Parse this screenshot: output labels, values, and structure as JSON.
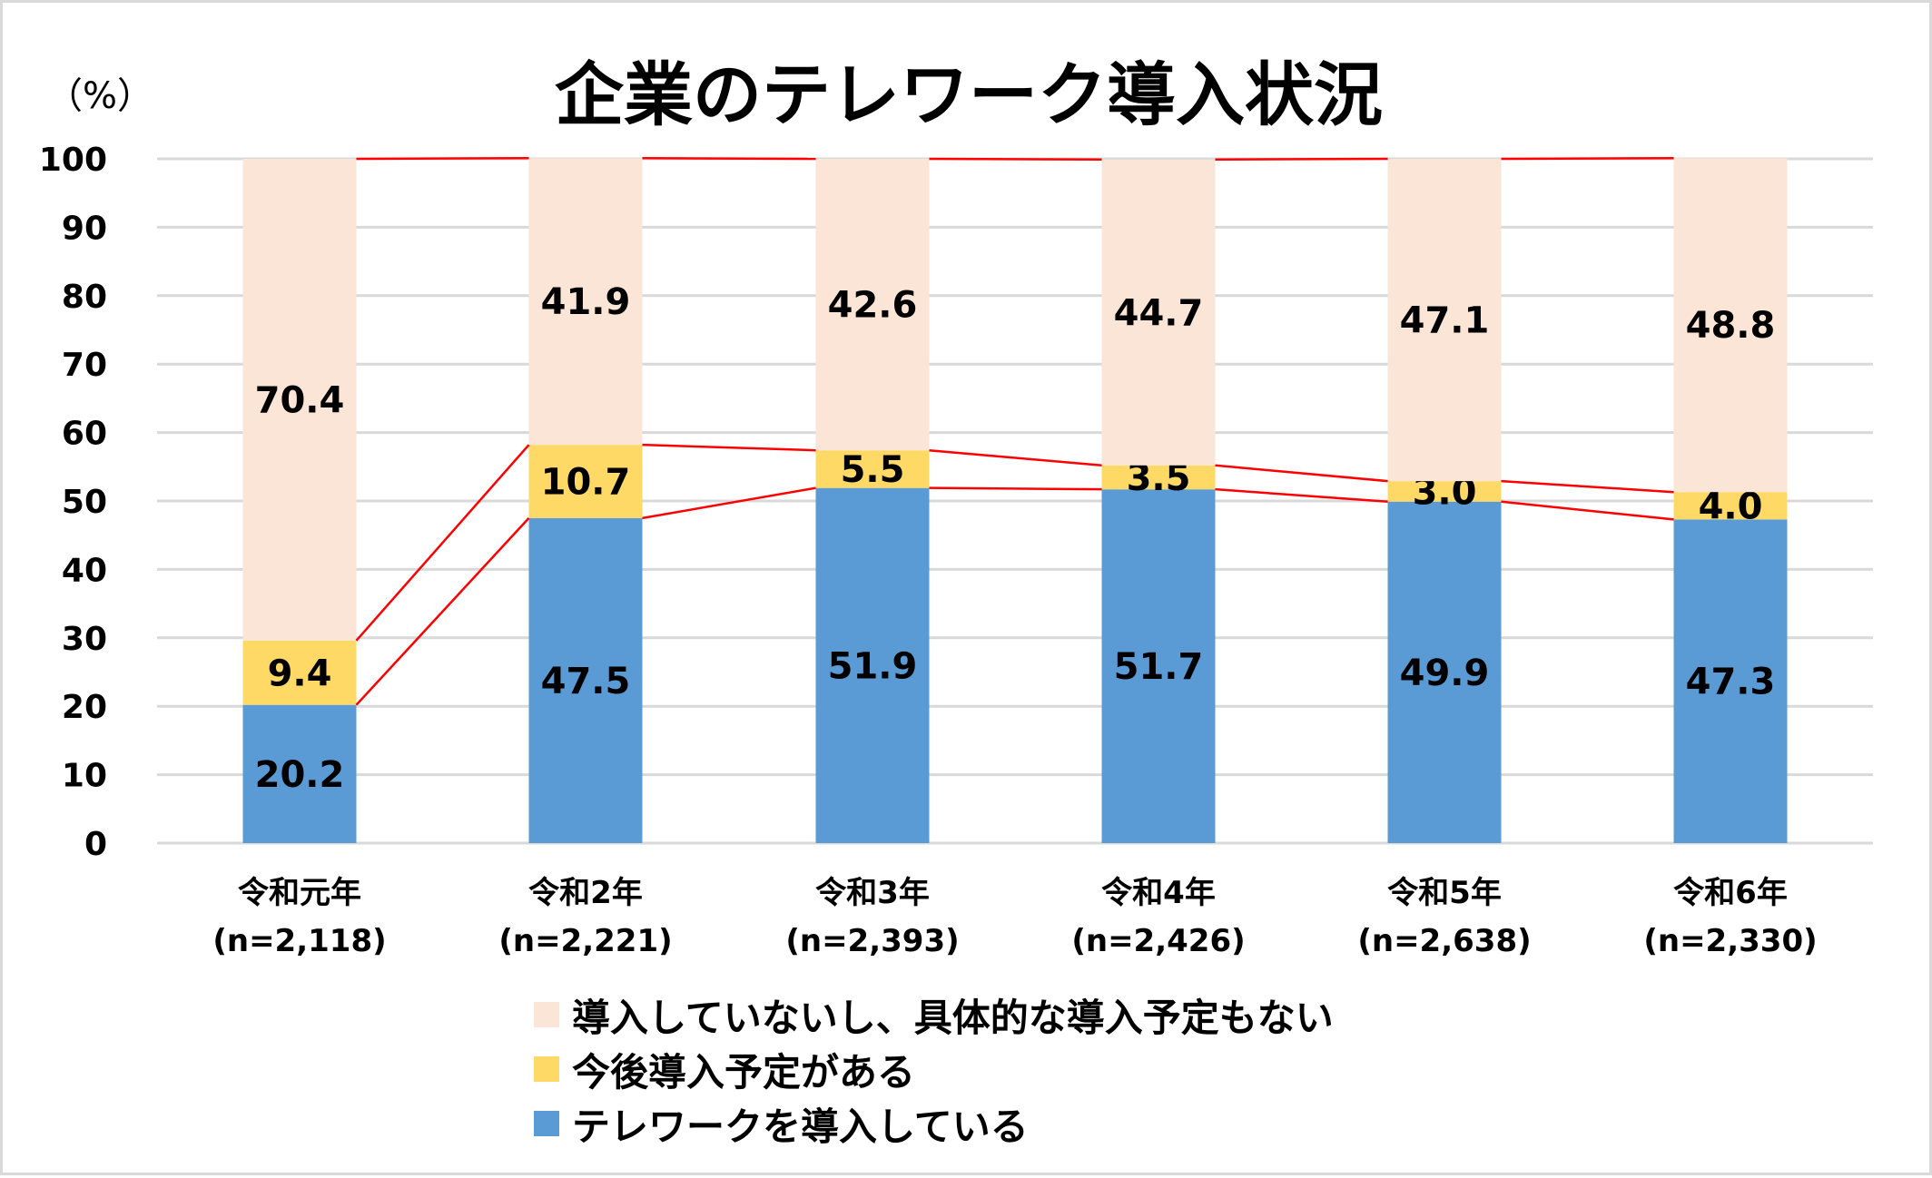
{
  "chart_data": {
    "type": "bar",
    "stacked": true,
    "title": "企業のテレワーク導入状況",
    "ylabel": "（%）",
    "ylim": [
      0,
      100
    ],
    "yticks": [
      0,
      10,
      20,
      30,
      40,
      50,
      60,
      70,
      80,
      90,
      100
    ],
    "grid": true,
    "legend_position": "bottom",
    "categories": [
      [
        "令和元年",
        "(n=2,118)"
      ],
      [
        "令和2年",
        "(n=2,221)"
      ],
      [
        "令和3年",
        "(n=2,393)"
      ],
      [
        "令和4年",
        "(n=2,426)"
      ],
      [
        "令和5年",
        "(n=2,638)"
      ],
      [
        "令和6年",
        "(n=2,330)"
      ]
    ],
    "series": [
      {
        "name": "テレワークを導入している",
        "color": "#5b9bd5",
        "values": [
          20.2,
          47.5,
          51.9,
          51.7,
          49.9,
          47.3
        ]
      },
      {
        "name": "今後導入予定がある",
        "color": "#ffd966",
        "values": [
          9.4,
          10.7,
          5.5,
          3.5,
          3.0,
          4.0
        ]
      },
      {
        "name": "導入していないし、具体的な導入予定もない",
        "color": "#fbe5d6",
        "values": [
          70.4,
          41.9,
          42.6,
          44.7,
          47.1,
          48.8
        ]
      }
    ],
    "connector_color": "#ff0000",
    "legend_order": [
      2,
      1,
      0
    ]
  }
}
